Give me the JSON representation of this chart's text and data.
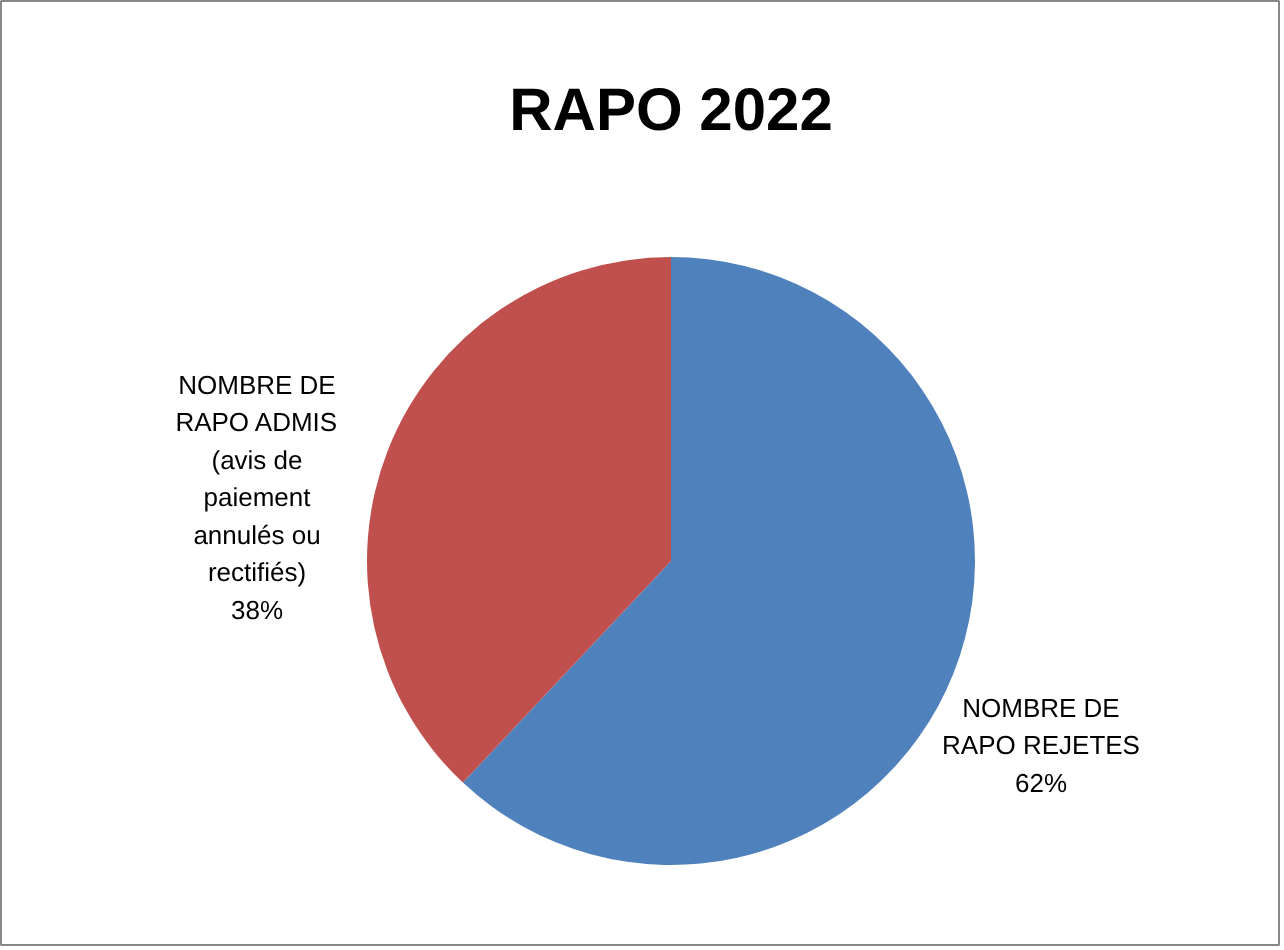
{
  "chart_data": {
    "type": "pie",
    "title": "RAPO 2022",
    "categories": [
      "NOMBRE DE RAPO REJETES",
      "NOMBRE DE RAPO ADMIS (avis de paiement annulés ou rectifiés)"
    ],
    "values": [
      62,
      38
    ],
    "colors": [
      "#4f81bd",
      "#c0504d"
    ],
    "value_labels": [
      "62%",
      "38%"
    ],
    "legend": false
  }
}
